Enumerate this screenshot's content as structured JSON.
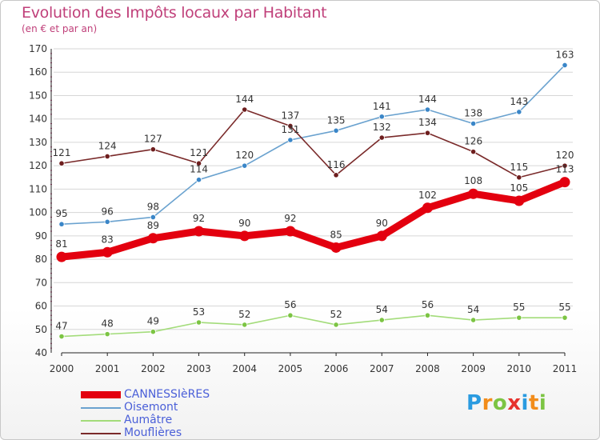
{
  "chart_data": {
    "type": "line",
    "title": "Evolution des Impôts locaux par Habitant",
    "subtitle": "(en € et par an)",
    "x": [
      "2000",
      "2001",
      "2002",
      "2003",
      "2004",
      "2005",
      "2006",
      "2007",
      "2008",
      "2009",
      "2010",
      "2011"
    ],
    "ylim": [
      40,
      170
    ],
    "yticks": [
      40,
      50,
      60,
      70,
      80,
      90,
      100,
      110,
      120,
      130,
      140,
      150,
      160,
      170
    ],
    "series": [
      {
        "name": "CANNESSIèRES",
        "values": [
          81,
          83,
          89,
          92,
          90,
          92,
          85,
          90,
          102,
          108,
          105,
          113
        ],
        "color": "#e3000f",
        "dot_color": "#e3000f",
        "bold": true
      },
      {
        "name": "Oisemont",
        "values": [
          95,
          96,
          98,
          114,
          120,
          131,
          135,
          141,
          144,
          138,
          143,
          163
        ],
        "color": "#6aa2cf",
        "dot_color": "#3a86c8",
        "bold": false
      },
      {
        "name": "Aumâtre",
        "values": [
          47,
          48,
          49,
          53,
          52,
          56,
          52,
          54,
          56,
          54,
          55,
          55
        ],
        "color": "#a3dc7a",
        "dot_color": "#7cc443",
        "bold": false
      },
      {
        "name": "Mouflières",
        "values": [
          121,
          124,
          127,
          121,
          144,
          137,
          116,
          132,
          134,
          126,
          115,
          120
        ],
        "color": "#7a2a2a",
        "dot_color": "#6e1e1e",
        "bold": false
      }
    ]
  },
  "brand": {
    "letters": [
      "P",
      "r",
      "o",
      "x",
      "i",
      "t",
      "i"
    ],
    "colors": [
      "#2a9be0",
      "#f28c1a",
      "#7cc443",
      "#e6322d",
      "#2a9be0",
      "#f28c1a",
      "#7cc443"
    ]
  }
}
